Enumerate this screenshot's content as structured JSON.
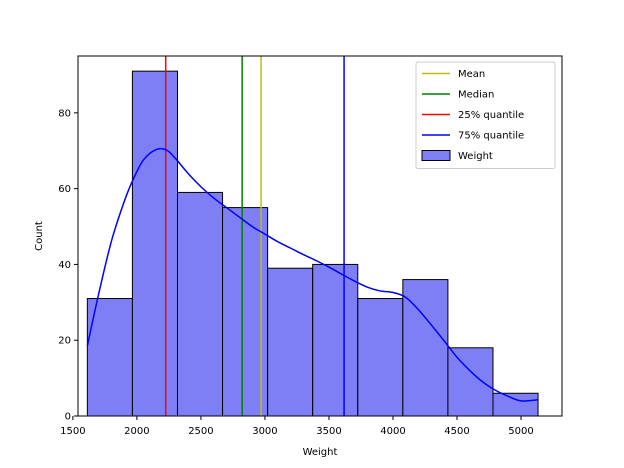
{
  "chart_data": {
    "type": "histogram",
    "title": "",
    "xlabel": "Weight",
    "ylabel": "Count",
    "xlim": [
      1540,
      5320
    ],
    "ylim": [
      0,
      95
    ],
    "xticks": [
      1500,
      2000,
      2500,
      3000,
      3500,
      4000,
      4500,
      5000
    ],
    "yticks": [
      0,
      20,
      40,
      60,
      80
    ],
    "bins": {
      "edges": [
        1613,
        1965,
        2317,
        2669,
        3021,
        3373,
        3725,
        4077,
        4429,
        4781,
        5133
      ],
      "counts": [
        31,
        91,
        59,
        55,
        39,
        40,
        31,
        36,
        18,
        6
      ],
      "color": "#7f7ff5",
      "edgecolor": "#000000",
      "name": "Weight"
    },
    "kde": {
      "color": "#0000ff",
      "x": [
        1613,
        1700,
        1800,
        1900,
        1965,
        2050,
        2150,
        2230,
        2300,
        2400,
        2500,
        2600,
        2700,
        2800,
        2900,
        3000,
        3100,
        3200,
        3300,
        3400,
        3500,
        3600,
        3700,
        3800,
        3900,
        4000,
        4100,
        4200,
        4300,
        4400,
        4500,
        4600,
        4700,
        4800,
        4900,
        5000,
        5133
      ],
      "y": [
        18.5,
        32,
        46,
        56.5,
        62,
        67.5,
        70.3,
        70.2,
        68,
        64,
        60.5,
        57.5,
        55,
        52.5,
        50,
        48,
        46,
        44.3,
        42.6,
        41,
        39.3,
        37.4,
        35.6,
        34,
        33,
        32.6,
        31.3,
        28,
        24,
        19.8,
        15.5,
        12,
        9,
        6.8,
        5.2,
        4,
        4.3
      ]
    },
    "vlines": [
      {
        "name": "Mean",
        "value": 2970,
        "color": "#bfbf00"
      },
      {
        "name": "Median",
        "value": 2822,
        "color": "#008000"
      },
      {
        "name": "25% quantile",
        "value": 2225,
        "color": "#ff0000"
      },
      {
        "name": "75% quantile",
        "value": 3618,
        "color": "#0000ff"
      }
    ],
    "legend": {
      "position": "upper right",
      "entries": [
        {
          "label": "Mean",
          "color": "#bfbf00",
          "kind": "line"
        },
        {
          "label": "Median",
          "color": "#008000",
          "kind": "line"
        },
        {
          "label": "25% quantile",
          "color": "#ff0000",
          "kind": "line"
        },
        {
          "label": "75% quantile",
          "color": "#0000ff",
          "kind": "line"
        },
        {
          "label": "Weight",
          "color": "#7f7ff5",
          "kind": "patch"
        }
      ]
    }
  }
}
